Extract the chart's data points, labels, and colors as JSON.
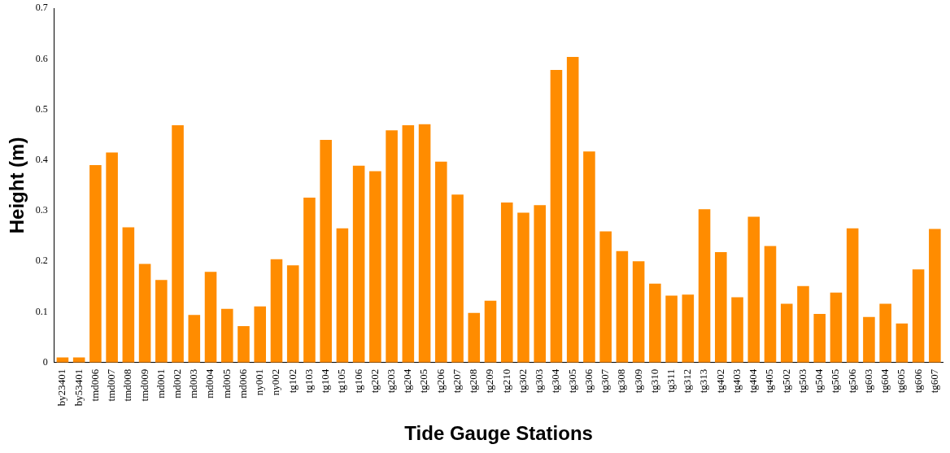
{
  "chart_data": {
    "type": "bar",
    "xlabel": "Tide Gauge Stations",
    "ylabel": "Height (m)",
    "categories": [
      "by23401",
      "by53401",
      "tmd006",
      "tmd007",
      "tmd008",
      "tmd009",
      "md001",
      "md002",
      "md003",
      "md004",
      "md005",
      "md006",
      "ny001",
      "ny002",
      "tg102",
      "tg103",
      "tg104",
      "tg105",
      "tg106",
      "tg202",
      "tg203",
      "tg204",
      "tg205",
      "tg206",
      "tg207",
      "tg208",
      "tg209",
      "tg210",
      "tg302",
      "tg303",
      "tg304",
      "tg305",
      "tg306",
      "tg307",
      "tg308",
      "tg309",
      "tg310",
      "tg311",
      "tg312",
      "tg313",
      "tg402",
      "tg403",
      "tg404",
      "tg405",
      "tg502",
      "tg503",
      "tg504",
      "tg505",
      "tg506",
      "tg603",
      "tg604",
      "tg605",
      "tg606",
      "tg607"
    ],
    "series": [
      {
        "color": "#ff8c00",
        "values": [
          0.01,
          0.01,
          0.39,
          0.415,
          0.267,
          0.195,
          0.163,
          0.469,
          0.094,
          0.179,
          0.106,
          0.072,
          0.111,
          0.204,
          0.192,
          0.326,
          0.44,
          0.265,
          0.389,
          0.378,
          0.459,
          0.469,
          0.471,
          0.397,
          0.332,
          0.098,
          0.122,
          0.316,
          0.296,
          0.311,
          0.578,
          0.604,
          0.417,
          0.259,
          0.22,
          0.2,
          0.156,
          0.132,
          0.134,
          0.303,
          0.218,
          0.129,
          0.288,
          0.23,
          0.116,
          0.151,
          0.096,
          0.138,
          0.265,
          0.09,
          0.116,
          0.077,
          0.184,
          0.264
        ]
      }
    ],
    "ylim": [
      0,
      0.7
    ],
    "yticks": [
      0,
      0.1,
      0.2,
      0.3,
      0.4,
      0.5,
      0.6,
      0.7
    ],
    "grid": false,
    "legend": false
  }
}
